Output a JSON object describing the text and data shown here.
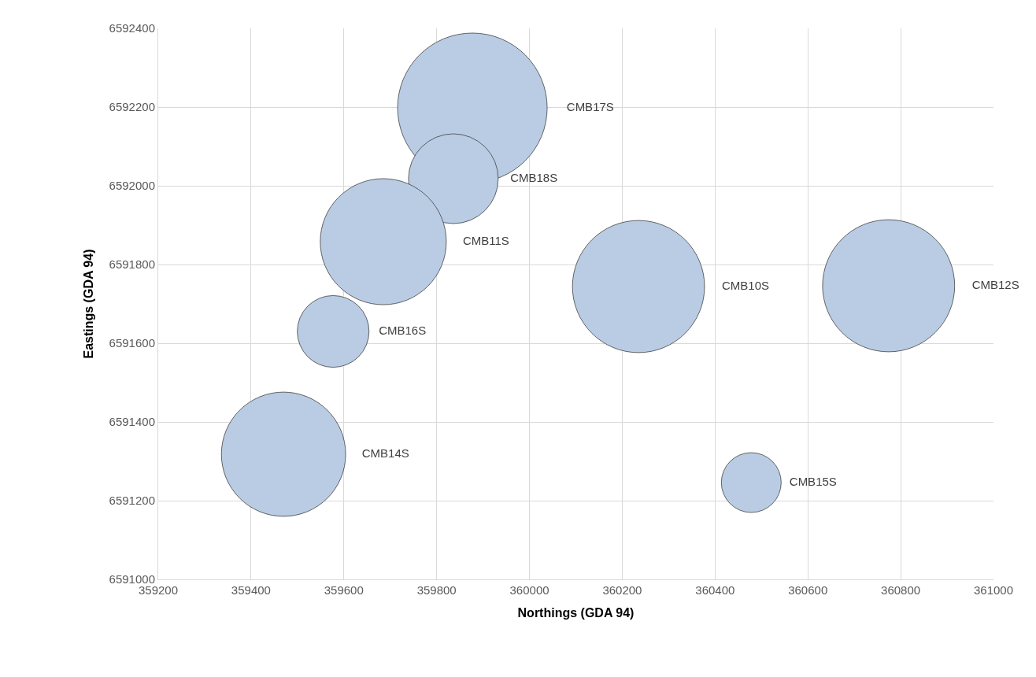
{
  "chart_data": {
    "type": "bubble",
    "xlabel": "Northings (GDA 94)",
    "ylabel": "Eastings (GDA 94)",
    "xlim": [
      359200,
      361000
    ],
    "xticks": [
      359200,
      359400,
      359600,
      359800,
      360000,
      360200,
      360400,
      360600,
      360800,
      361000
    ],
    "ylim": [
      6591000,
      6592400
    ],
    "yticks": [
      6591000,
      6591200,
      6591400,
      6591600,
      6591800,
      6592000,
      6592200,
      6592400
    ],
    "grid": true,
    "legend": false,
    "series": [
      {
        "name": "CMB17S",
        "color": "#b9cce4",
        "x": [
          359877
        ],
        "values": [
          6592198
        ],
        "sizes": [
          1
        ]
      },
      {
        "name": "CMB18S",
        "color": "#b9cce4",
        "x": [
          359836
        ],
        "values": [
          6592018
        ],
        "sizes": [
          0.36
        ]
      },
      {
        "name": "CMB11S",
        "color": "#b9cce4",
        "x": [
          359685
        ],
        "values": [
          6591858
        ],
        "sizes": [
          0.71
        ]
      },
      {
        "name": "CMB16S",
        "color": "#b9cce4",
        "x": [
          359577
        ],
        "values": [
          6591630
        ],
        "sizes": [
          0.23
        ]
      },
      {
        "name": "CMB14S",
        "color": "#b9cce4",
        "x": [
          359470
        ],
        "values": [
          6591318
        ],
        "sizes": [
          0.69
        ]
      },
      {
        "name": "CMB10S",
        "color": "#b9cce4",
        "x": [
          360235
        ],
        "values": [
          6591744
        ],
        "sizes": [
          0.78
        ]
      },
      {
        "name": "CMB12S",
        "color": "#b9cce4",
        "x": [
          360774
        ],
        "values": [
          6591746
        ],
        "sizes": [
          0.78
        ]
      },
      {
        "name": "CMB15S",
        "color": "#b9cce4",
        "x": [
          360478
        ],
        "values": [
          6591246
        ],
        "sizes": [
          0.16
        ]
      }
    ]
  }
}
